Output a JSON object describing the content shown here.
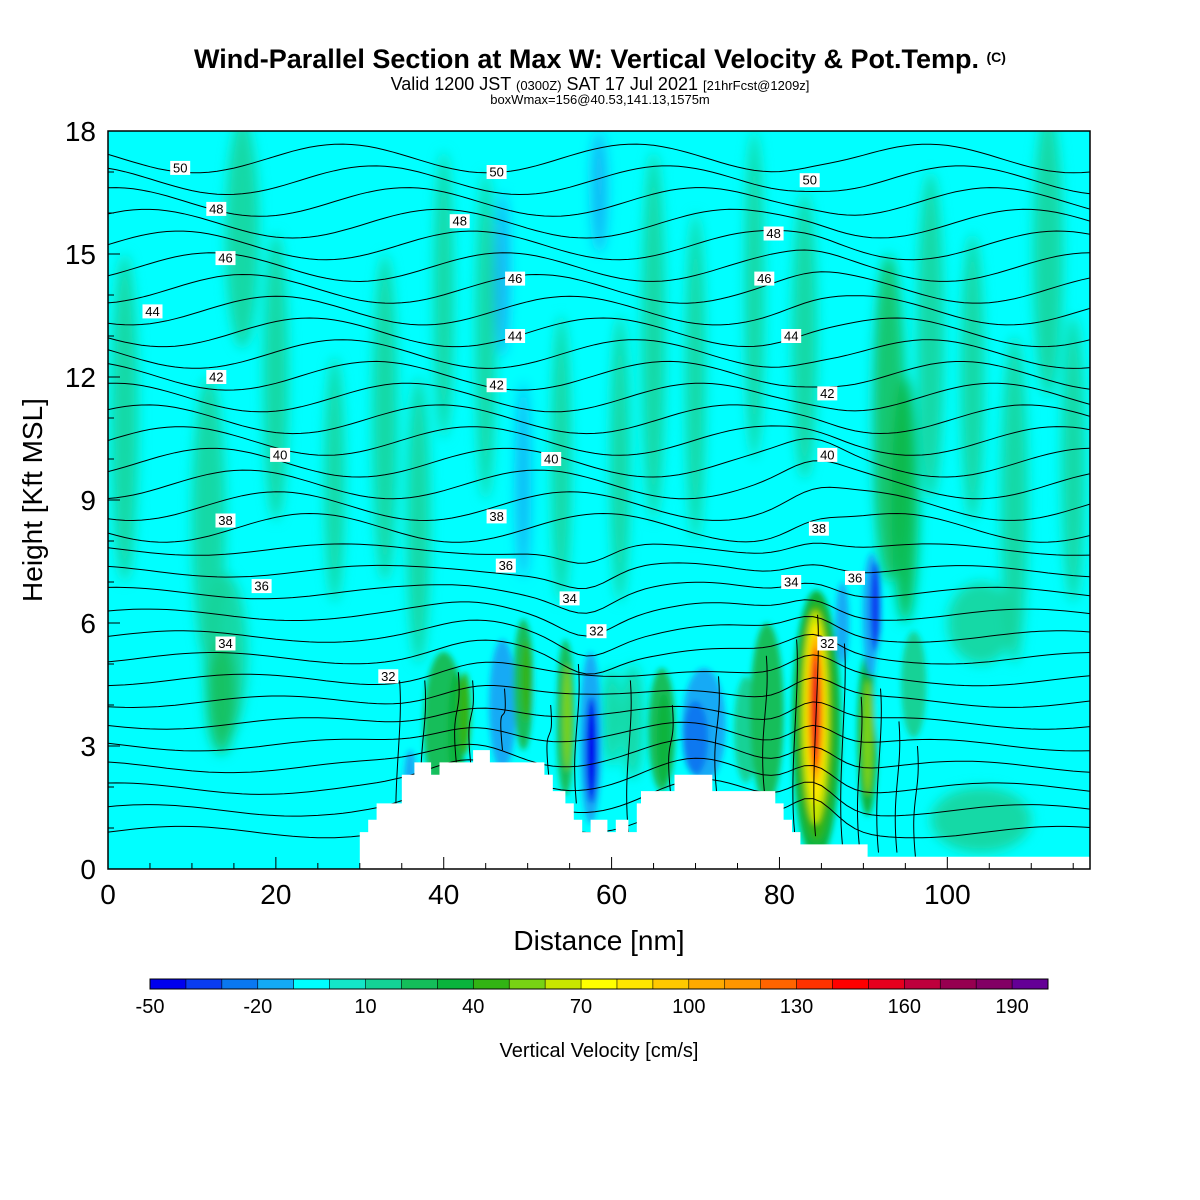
{
  "title": {
    "main": "Wind-Parallel Section at Max W: Vertical Velocity & Pot.Temp.",
    "copyright": "(C)",
    "valid_prefix": "Valid 1200 JST",
    "valid_utc": "(0300Z)",
    "valid_date": "SAT 17 Jul 2021",
    "forecast": "[21hrFcst@1209z]",
    "boxwmax": "boxWmax=156@40.53,141.13,1575m"
  },
  "chart_data": {
    "type": "heatmap",
    "xlabel": "Distance [nm]",
    "ylabel": "Height [Kft MSL]",
    "xlim": [
      0,
      117
    ],
    "ylim": [
      0,
      18
    ],
    "xticks": [
      0,
      20,
      40,
      60,
      80,
      100
    ],
    "yticks": [
      0,
      3,
      6,
      9,
      12,
      15,
      18
    ],
    "colorbar": {
      "label": "Vertical Velocity [cm/s]",
      "ticks": [
        -50,
        -20,
        10,
        40,
        70,
        100,
        130,
        160,
        190
      ],
      "levels": [
        -50,
        -40,
        -30,
        -20,
        -10,
        0,
        10,
        20,
        30,
        40,
        50,
        60,
        70,
        80,
        90,
        100,
        110,
        120,
        130,
        140,
        150,
        160,
        170,
        180,
        190,
        200
      ],
      "colors": [
        "#0000ee",
        "#0a3cf0",
        "#0a78f0",
        "#14aaf5",
        "#00ffff",
        "#14e6c8",
        "#14d296",
        "#14be5a",
        "#0ab43c",
        "#32b414",
        "#78d214",
        "#c8e600",
        "#ffff00",
        "#ffe600",
        "#ffc800",
        "#ffaa00",
        "#ff9600",
        "#ff6400",
        "#ff3200",
        "#ff0000",
        "#e6001e",
        "#be003c",
        "#960050",
        "#820064",
        "#640096"
      ]
    },
    "theta_contours": {
      "unit": "C",
      "labels": [
        {
          "value": 50,
          "x": 8.6,
          "y": 17.1
        },
        {
          "value": 48,
          "x": 12.9,
          "y": 16.1
        },
        {
          "value": 46,
          "x": 14.0,
          "y": 14.9
        },
        {
          "value": 44,
          "x": 5.3,
          "y": 13.6
        },
        {
          "value": 42,
          "x": 12.9,
          "y": 12.0
        },
        {
          "value": 40,
          "x": 20.5,
          "y": 10.1
        },
        {
          "value": 38,
          "x": 14.0,
          "y": 8.5
        },
        {
          "value": 36,
          "x": 18.3,
          "y": 6.9
        },
        {
          "value": 34,
          "x": 14.0,
          "y": 5.5
        },
        {
          "value": 32,
          "x": 33.4,
          "y": 4.7
        },
        {
          "value": 50,
          "x": 46.3,
          "y": 17.0
        },
        {
          "value": 48,
          "x": 41.9,
          "y": 15.8
        },
        {
          "value": 46,
          "x": 48.5,
          "y": 14.4
        },
        {
          "value": 44,
          "x": 48.5,
          "y": 13.0
        },
        {
          "value": 42,
          "x": 46.3,
          "y": 11.8
        },
        {
          "value": 40,
          "x": 52.8,
          "y": 10.0
        },
        {
          "value": 38,
          "x": 46.3,
          "y": 8.6
        },
        {
          "value": 36,
          "x": 47.4,
          "y": 7.4
        },
        {
          "value": 34,
          "x": 55.0,
          "y": 6.6
        },
        {
          "value": 32,
          "x": 58.2,
          "y": 5.8
        },
        {
          "value": 50,
          "x": 83.6,
          "y": 16.8
        },
        {
          "value": 48,
          "x": 79.3,
          "y": 15.5
        },
        {
          "value": 46,
          "x": 78.2,
          "y": 14.4
        },
        {
          "value": 44,
          "x": 81.4,
          "y": 13.0
        },
        {
          "value": 42,
          "x": 85.7,
          "y": 11.6
        },
        {
          "value": 40,
          "x": 85.7,
          "y": 10.1
        },
        {
          "value": 38,
          "x": 84.7,
          "y": 8.3
        },
        {
          "value": 36,
          "x": 89.0,
          "y": 7.1
        },
        {
          "value": 34,
          "x": 81.4,
          "y": 7.0
        },
        {
          "value": 32,
          "x": 85.7,
          "y": 5.5
        }
      ]
    },
    "terrain_kft": [
      [
        0,
        0
      ],
      [
        30,
        0
      ],
      [
        30,
        0.9
      ],
      [
        31,
        0.9
      ],
      [
        31,
        1.2
      ],
      [
        32,
        1.2
      ],
      [
        32,
        1.6
      ],
      [
        35,
        1.6
      ],
      [
        35,
        2.3
      ],
      [
        36.5,
        2.3
      ],
      [
        36.5,
        2.6
      ],
      [
        38.5,
        2.6
      ],
      [
        38.5,
        2.3
      ],
      [
        39.5,
        2.3
      ],
      [
        39.5,
        2.6
      ],
      [
        43.5,
        2.6
      ],
      [
        43.5,
        2.9
      ],
      [
        45.5,
        2.9
      ],
      [
        45.5,
        2.6
      ],
      [
        52,
        2.6
      ],
      [
        52,
        2.3
      ],
      [
        53,
        2.3
      ],
      [
        53,
        1.9
      ],
      [
        54.5,
        1.9
      ],
      [
        54.5,
        1.6
      ],
      [
        55.5,
        1.6
      ],
      [
        55.5,
        1.2
      ],
      [
        56.5,
        1.2
      ],
      [
        56.5,
        0.9
      ],
      [
        57.5,
        0.9
      ],
      [
        57.5,
        1.2
      ],
      [
        59.5,
        1.2
      ],
      [
        59.5,
        0.9
      ],
      [
        60.5,
        0.9
      ],
      [
        60.5,
        1.2
      ],
      [
        62,
        1.2
      ],
      [
        62,
        0.9
      ],
      [
        63,
        0.9
      ],
      [
        63,
        1.6
      ],
      [
        63.5,
        1.6
      ],
      [
        63.5,
        1.9
      ],
      [
        67.5,
        1.9
      ],
      [
        67.5,
        2.3
      ],
      [
        72,
        2.3
      ],
      [
        72,
        1.9
      ],
      [
        79.5,
        1.9
      ],
      [
        79.5,
        1.6
      ],
      [
        80.5,
        1.6
      ],
      [
        80.5,
        1.2
      ],
      [
        81.5,
        1.2
      ],
      [
        81.5,
        0.9
      ],
      [
        82.5,
        0.9
      ],
      [
        82.5,
        0.6
      ],
      [
        90.5,
        0.6
      ],
      [
        90.5,
        0.3
      ],
      [
        117,
        0.3
      ],
      [
        117,
        0
      ]
    ],
    "vertical_velocity_features": [
      {
        "x": 84.3,
        "y": 3.8,
        "value": 156
      },
      {
        "x": 57.5,
        "y": 2.9,
        "value": -50
      },
      {
        "x": 91.5,
        "y": 6.2,
        "value": -40
      }
    ]
  }
}
